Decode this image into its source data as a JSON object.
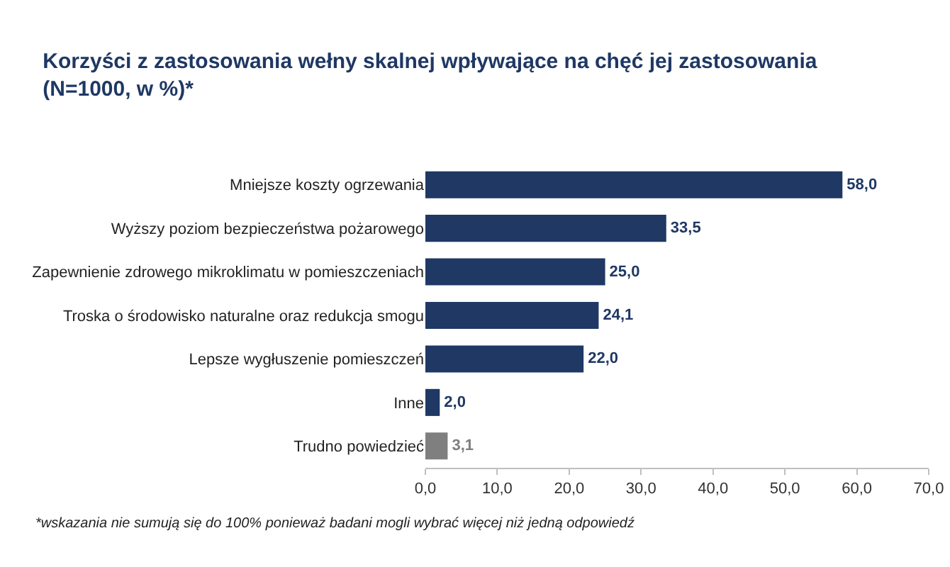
{
  "chart_data": {
    "type": "bar",
    "orientation": "horizontal",
    "title": "Korzyści z zastosowania wełny skalnej wpływające na chęć jej zastosowania\n(N=1000, w %)*",
    "categories": [
      "Mniejsze koszty ogrzewania",
      "Wyższy poziom bezpieczeństwa pożarowego",
      "Zapewnienie zdrowego mikroklimatu w pomieszczeniach",
      "Troska o środowisko naturalne oraz redukcja smogu",
      "Lepsze wygłuszenie pomieszczeń",
      "Inne",
      "Trudno powiedzieć"
    ],
    "values": [
      58.0,
      33.5,
      25.0,
      24.1,
      22.0,
      2.0,
      3.1
    ],
    "value_labels": [
      "58,0",
      "33,5",
      "25,0",
      "24,1",
      "22,0",
      "2,0",
      "3,1"
    ],
    "colors": [
      "#1f3864",
      "#1f3864",
      "#1f3864",
      "#1f3864",
      "#1f3864",
      "#1f3864",
      "#7f7f7f"
    ],
    "xlim": [
      0,
      70
    ],
    "xticks": [
      {
        "value": 0,
        "label": "0,0"
      },
      {
        "value": 10,
        "label": "10,0"
      },
      {
        "value": 20,
        "label": "20,0"
      },
      {
        "value": 30,
        "label": "30,0"
      },
      {
        "value": 40,
        "label": "40,0"
      },
      {
        "value": 50,
        "label": "50,0"
      },
      {
        "value": 60,
        "label": "60,0"
      },
      {
        "value": 70,
        "label": "70,0"
      }
    ],
    "grid": false,
    "legend": false,
    "annotations": [
      "*wskazania nie sumują się do 100% ponieważ badani mogli wybrać więcej niż jedną odpowiedź"
    ]
  }
}
